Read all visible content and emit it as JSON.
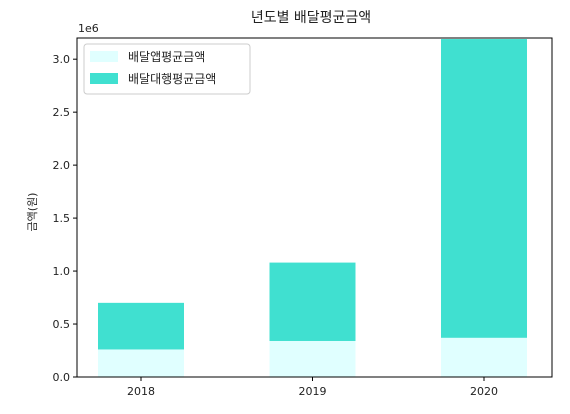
{
  "chart_data": {
    "type": "bar",
    "stacked": true,
    "title": "년도별 배달평균금액",
    "xlabel": "",
    "ylabel": "금액(원)",
    "scale_note": "1e6",
    "categories": [
      "2018",
      "2019",
      "2020"
    ],
    "series": [
      {
        "name": "배달앱평균금액",
        "color": "#e0ffff",
        "values": [
          260000,
          340000,
          370000
        ]
      },
      {
        "name": "배달대행평균금액",
        "color": "#40e0d0",
        "values": [
          440000,
          740000,
          2820000
        ]
      }
    ],
    "ylim": [
      0,
      3200000
    ],
    "yticks": [
      0,
      500000,
      1000000,
      1500000,
      2000000,
      2500000,
      3000000
    ],
    "ytick_labels": [
      "0.0",
      "0.5",
      "1.0",
      "1.5",
      "2.0",
      "2.5",
      "3.0"
    ],
    "grid": false,
    "legend": "top-left"
  }
}
